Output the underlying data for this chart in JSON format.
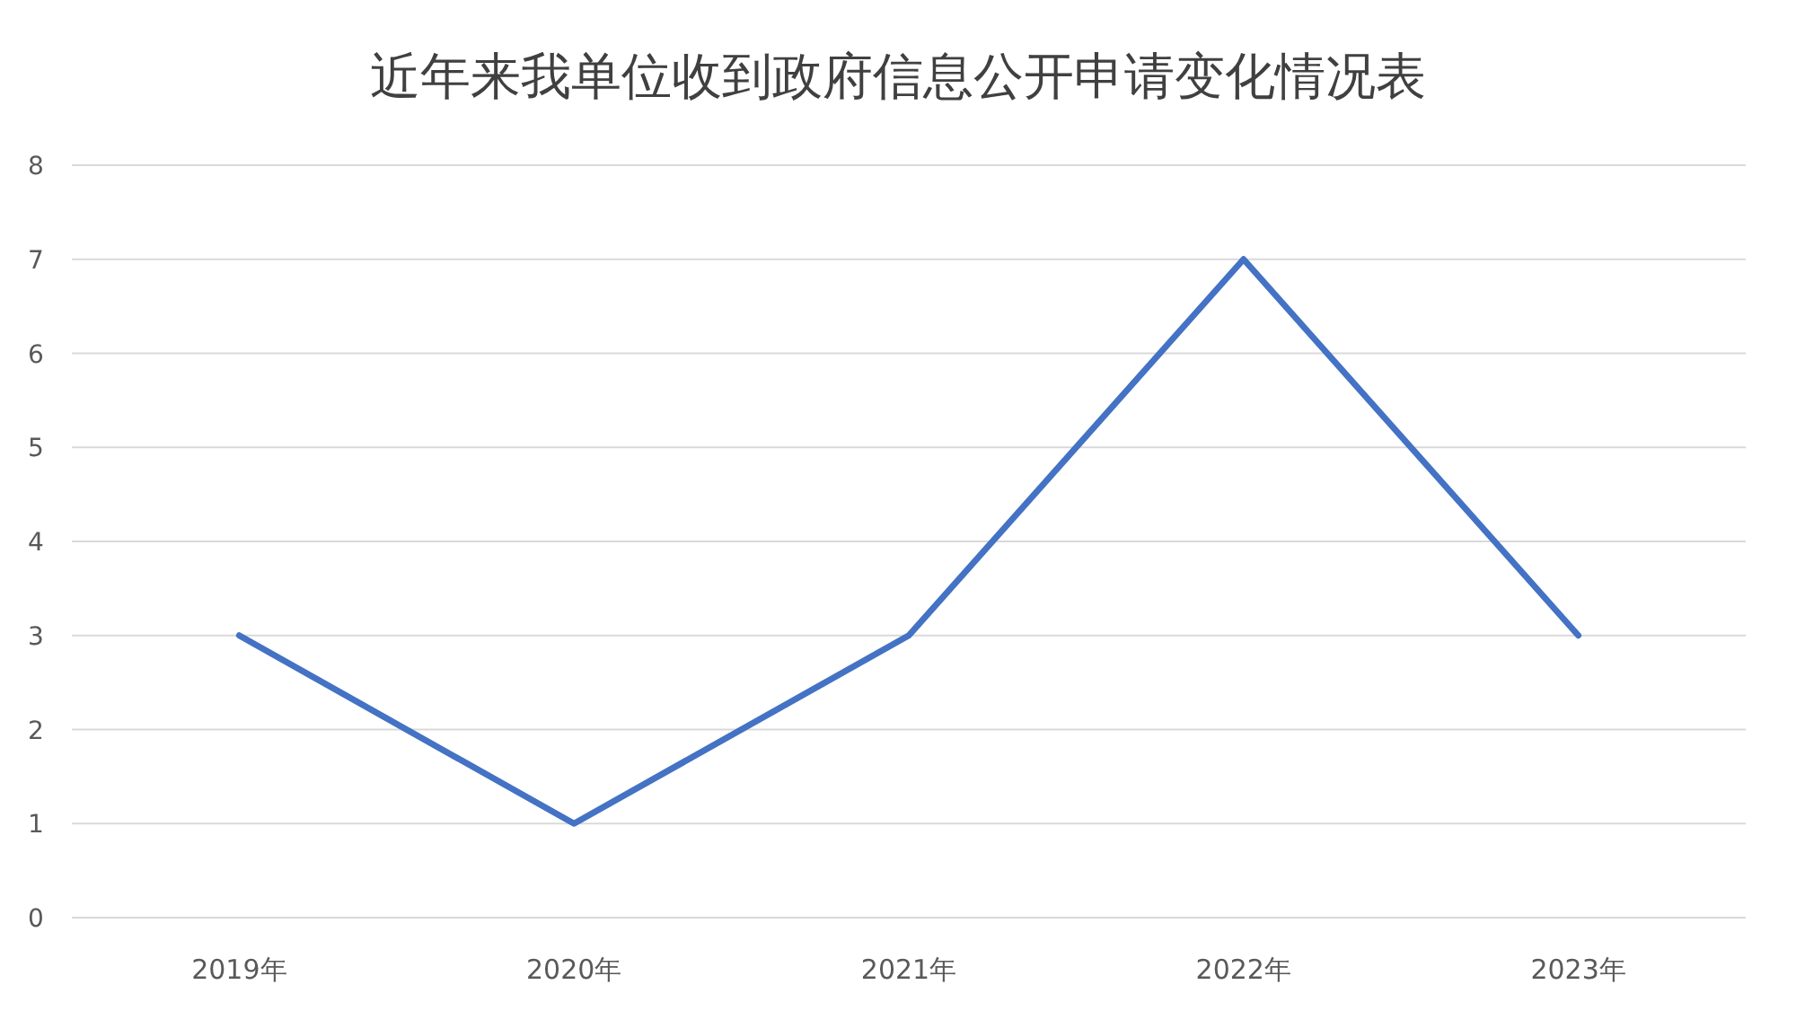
{
  "chart_data": {
    "type": "line",
    "title": "近年来我单位收到政府信息公开申请变化情况表",
    "categories": [
      "2019年",
      "2020年",
      "2021年",
      "2022年",
      "2023年"
    ],
    "series": [
      {
        "color": "#4472c4",
        "values": [
          3,
          1,
          3,
          7,
          3
        ]
      }
    ],
    "ylim": [
      0,
      8
    ],
    "yticks": [
      0,
      1,
      2,
      3,
      4,
      5,
      6,
      7,
      8
    ],
    "grid": "y",
    "marker": "none",
    "line_style": "solid"
  }
}
